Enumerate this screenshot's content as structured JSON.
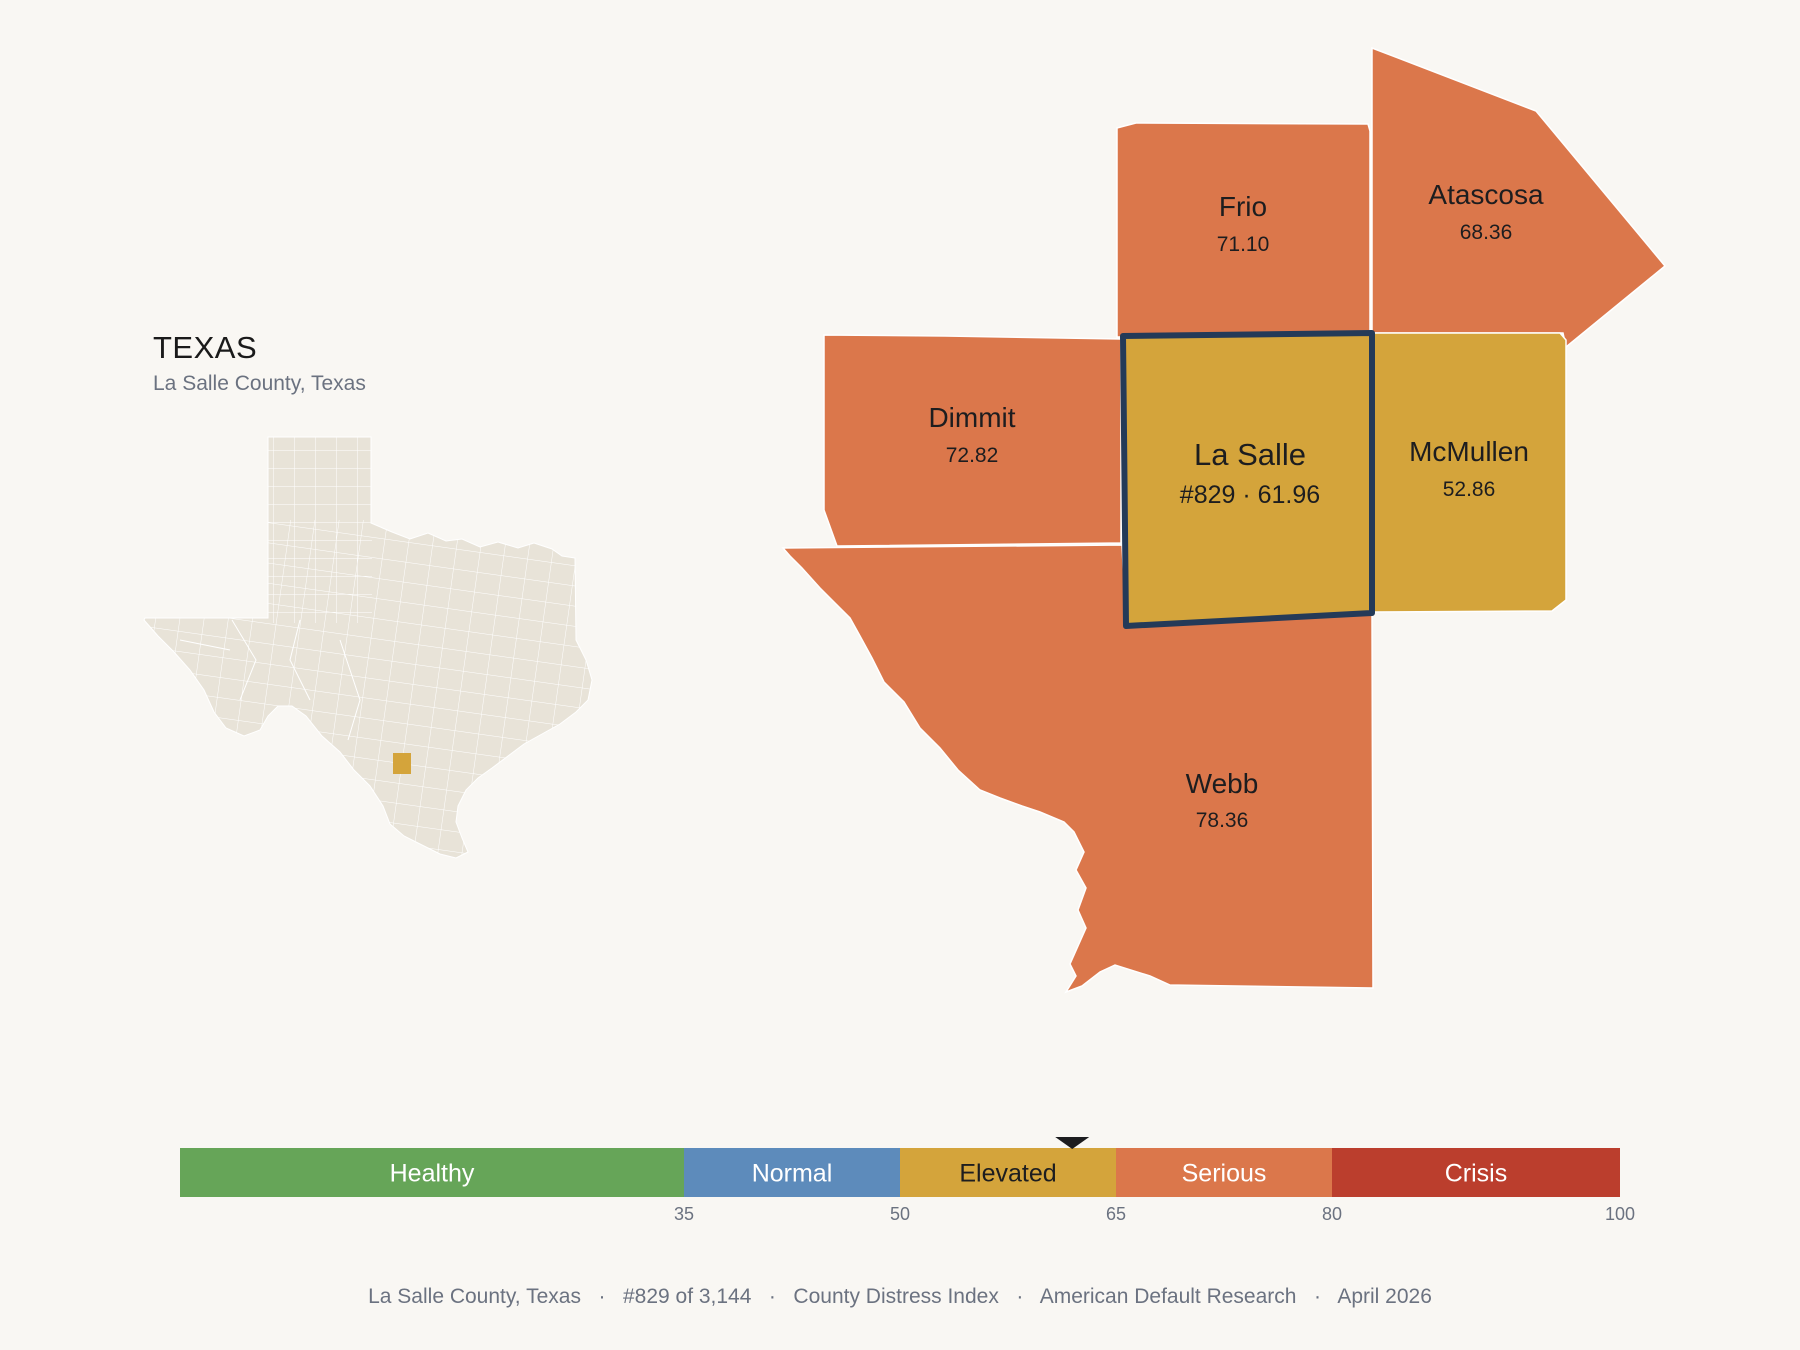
{
  "locator": {
    "state_title": "TEXAS",
    "subtitle": "La Salle County, Texas"
  },
  "counties": [
    {
      "key": "frio",
      "name": "Frio",
      "value": "71.10",
      "category": "Serious"
    },
    {
      "key": "atascosa",
      "name": "Atascosa",
      "value": "68.36",
      "category": "Serious"
    },
    {
      "key": "dimmit",
      "name": "Dimmit",
      "value": "72.82",
      "category": "Serious"
    },
    {
      "key": "lasalle",
      "name": "La Salle",
      "value": "#829 · 61.96",
      "category": "Elevated",
      "selected": true
    },
    {
      "key": "mcmullen",
      "name": "McMullen",
      "value": "52.86",
      "category": "Elevated"
    },
    {
      "key": "webb",
      "name": "Webb",
      "value": "78.36",
      "category": "Serious"
    }
  ],
  "scale": {
    "min": 0,
    "max": 100,
    "marker_value": 61.96,
    "segments": [
      {
        "label": "Healthy",
        "from": 0,
        "to": 35,
        "color": "#66a558"
      },
      {
        "label": "Normal",
        "from": 35,
        "to": 50,
        "color": "#5d8bbb"
      },
      {
        "label": "Elevated",
        "from": 50,
        "to": 65,
        "color": "#d4a43b"
      },
      {
        "label": "Serious",
        "from": 65,
        "to": 80,
        "color": "#db774b"
      },
      {
        "label": "Crisis",
        "from": 80,
        "to": 100,
        "color": "#bb3e2d"
      }
    ],
    "ticks": [
      "35",
      "50",
      "65",
      "80",
      "100"
    ]
  },
  "colors": {
    "background": "#f9f7f3",
    "serious": "#db774b",
    "elevated": "#d4a43b",
    "selected_outline": "#243a58",
    "locator_fill": "#e8e3d8",
    "locator_highlight": "#d4a43b"
  },
  "footer": {
    "items": [
      "La Salle County, Texas",
      "#829 of 3,144",
      "County Distress Index",
      "American Default Research",
      "April 2026"
    ]
  }
}
